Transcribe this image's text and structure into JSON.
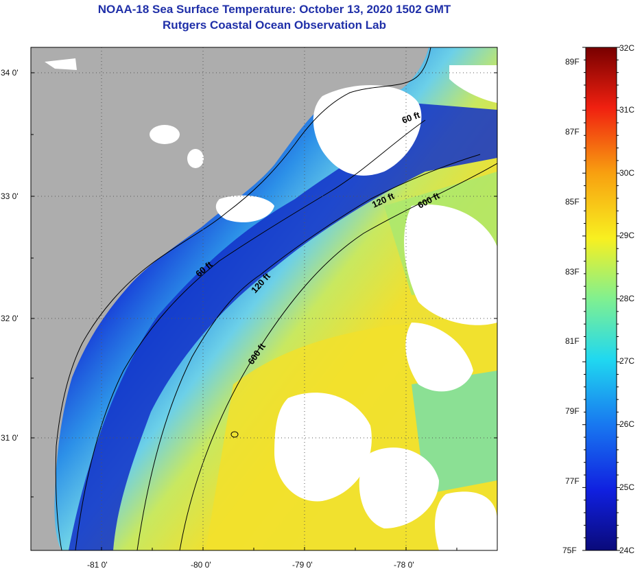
{
  "title": "NOAA-18 Sea Surface Temperature:  October 13, 2020 1502 GMT",
  "subtitle": "Rutgers Coastal Ocean Observation Lab",
  "map": {
    "lat_labels": [
      "34 0'",
      "33 0'",
      "32 0'",
      "31 0'"
    ],
    "lon_labels": [
      "-81 0'",
      "-80 0'",
      "-79 0'",
      "-78 0'"
    ],
    "isobath_labels": [
      "60 ft",
      "120 ft",
      "600 ft",
      "60 ft",
      "120 ft",
      "600 ft"
    ],
    "colors": {
      "land": "#adadad",
      "cloud": "#ffffff",
      "coastal_cold": "#0a1aa8",
      "mid": "#3aa8e8",
      "warm": "#f0e030",
      "shelf": "#8fe0b0"
    }
  },
  "colorbar": {
    "fahrenheit": [
      "89F",
      "87F",
      "85F",
      "83F",
      "81F",
      "79F",
      "77F",
      "75F"
    ],
    "celsius": [
      "32C",
      "31C",
      "30C",
      "29C",
      "28C",
      "27C",
      "26C",
      "25C",
      "24C"
    ],
    "range_c": [
      24,
      32
    ],
    "range_f": [
      75,
      89
    ]
  }
}
